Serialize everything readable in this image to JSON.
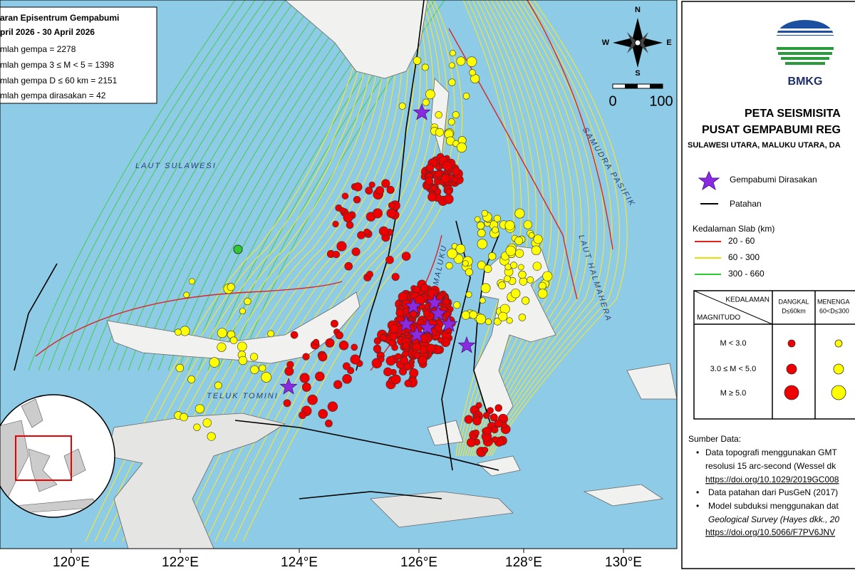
{
  "info_box": {
    "title": "aran Episentrum Gempabumi",
    "period": "pril 2026 - 30 April 2026",
    "lines": [
      "mlah gempa = 2278",
      "mlah gempa 3 ≤ M < 5 = 1398",
      "mlah gempa D ≤ 60 km = 2151",
      "mlah gempa dirasakan = 42"
    ]
  },
  "map_labels": {
    "laut_sulawesi": "LAUT SULAWESI",
    "samudra_pasifik": "SAMUDRA PASIFIK",
    "laut_halmahera": "LAUT HALMAHERA",
    "teluk_tomini": "TELUK TOMINI",
    "maluku": "MALUKU"
  },
  "compass": {
    "n": "N",
    "s": "S",
    "w": "W",
    "e": "E"
  },
  "scale": {
    "start": "0",
    "end": "100"
  },
  "x_axis": [
    "120°E",
    "122°E",
    "124°E",
    "126°E",
    "128°E",
    "130°E"
  ],
  "panel": {
    "logo": "BMKG",
    "title_1": "PETA SEISMISITA",
    "title_2": "PUSAT GEMPABUMI REG",
    "subtitle": "SULAWESI UTARA, MALUKU UTARA, DA",
    "legend": {
      "felt": "Gempabumi Dirasakan",
      "fault": "Patahan",
      "slab_title": "Kedalaman Slab (km)",
      "slab": [
        "20 - 60",
        "60 - 300",
        "300 - 660"
      ]
    },
    "table": {
      "corner_top": "KEDALAMAN",
      "corner_bottom": "MAGNITUDO",
      "col1": [
        "DANGKAL",
        "D≤60km"
      ],
      "col2": [
        "MENENGA",
        "60<D≤300"
      ],
      "rows": [
        "M < 3.0",
        "3.0 ≤ M < 5.0",
        "M ≥ 5.0"
      ]
    },
    "sources": {
      "title": "Sumber Data:",
      "lines": [
        "Data topografi menggunakan GMT",
        "resolusi 15 arc-second (Wessel dk",
        "https://doi.org/10.1029/2019GC008",
        "Data patahan dari PusGeN (2017)",
        "Model subduksi menggunakan dat",
        "Geological Survey (Hayes dkk., 20",
        "https://doi.org/10.5066/F7PV6JNV"
      ]
    }
  }
}
